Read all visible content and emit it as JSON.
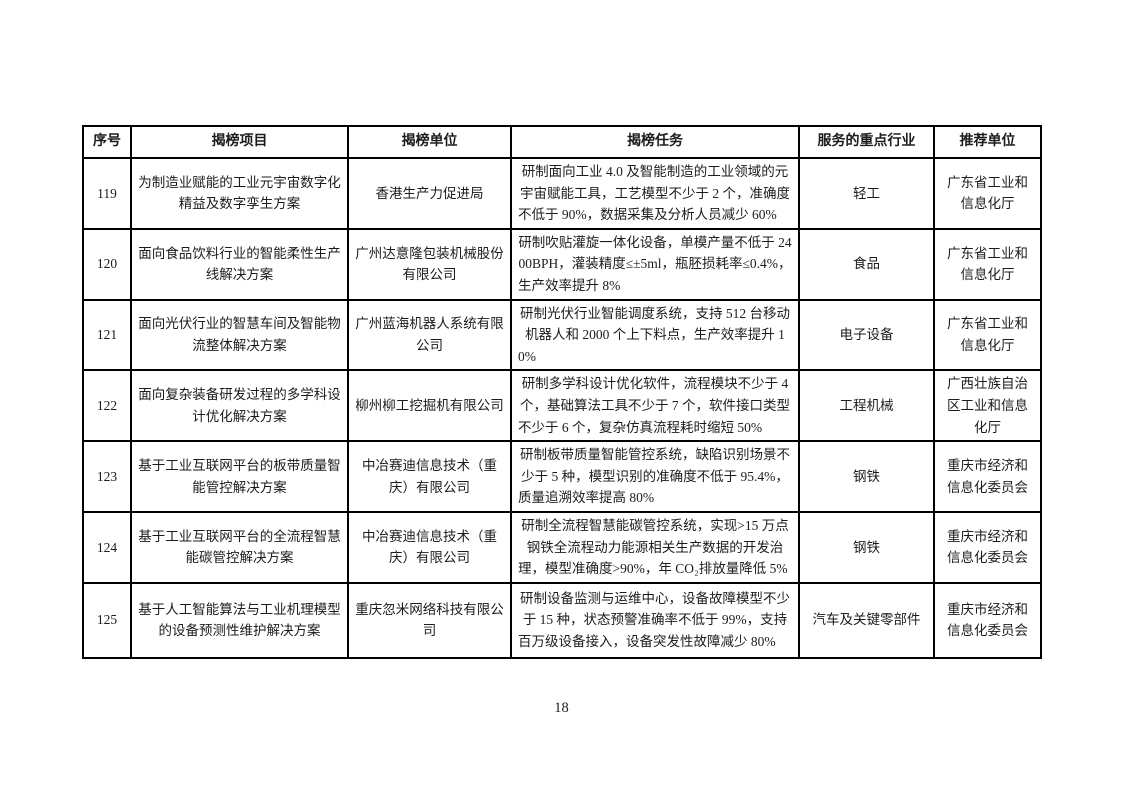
{
  "document": {
    "page_number": "18"
  },
  "table": {
    "headers": [
      "序号",
      "揭榜项目",
      "揭榜单位",
      "揭榜任务",
      "服务的重点行业",
      "推荐单位"
    ],
    "rows": [
      {
        "no": "119",
        "project": "为制造业赋能的工业元宇宙数字化精益及数字孪生方案",
        "unit": "香港生产力促进局",
        "task": "研制面向工业 4.0 及智能制造的工业领域的元宇宙赋能工具，工艺模型不少于 2 个，准确度不低于 90%，数据采集及分析人员减少 60%",
        "industry": "轻工",
        "recommender": "广东省工业和信息化厅"
      },
      {
        "no": "120",
        "project": "面向食品饮料行业的智能柔性生产线解决方案",
        "unit": "广州达意隆包装机械股份有限公司",
        "task": "研制吹贴灌旋一体化设备，单模产量不低于 2400BPH，灌装精度≤±5ml，瓶胚损耗率≤0.4%，生产效率提升 8%",
        "industry": "食品",
        "recommender": "广东省工业和信息化厅"
      },
      {
        "no": "121",
        "project": "面向光伏行业的智慧车间及智能物流整体解决方案",
        "unit": "广州蓝海机器人系统有限公司",
        "task": "研制光伏行业智能调度系统，支持 512 台移动机器人和 2000 个上下料点，生产效率提升 10%",
        "industry": "电子设备",
        "recommender": "广东省工业和信息化厅"
      },
      {
        "no": "122",
        "project": "面向复杂装备研发过程的多学科设计优化解决方案",
        "unit": "柳州柳工挖掘机有限公司",
        "task": "研制多学科设计优化软件，流程模块不少于 4 个，基础算法工具不少于 7 个，软件接口类型不少于 6 个，复杂仿真流程耗时缩短 50%",
        "industry": "工程机械",
        "recommender": "广西壮族自治区工业和信息化厅"
      },
      {
        "no": "123",
        "project": "基于工业互联网平台的板带质量智能管控解决方案",
        "unit": "中冶赛迪信息技术（重庆）有限公司",
        "task": "研制板带质量智能管控系统，缺陷识别场景不少于 5 种，模型识别的准确度不低于 95.4%，质量追溯效率提高 80%",
        "industry": "钢铁",
        "recommender": "重庆市经济和信息化委员会"
      },
      {
        "no": "124",
        "project": "基于工业互联网平台的全流程智慧能碳管控解决方案",
        "unit": "中冶赛迪信息技术（重庆）有限公司",
        "task": "研制全流程智慧能碳管控系统，实现>15 万点钢铁全流程动力能源相关生产数据的开发治理，模型准确度>90%，年 CO₂排放量降低 5%",
        "industry": "钢铁",
        "recommender": "重庆市经济和信息化委员会"
      },
      {
        "no": "125",
        "project": "基于人工智能算法与工业机理模型的设备预测性维护解决方案",
        "unit": "重庆忽米网络科技有限公司",
        "task": "研制设备监测与运维中心，设备故障模型不少于 15 种，状态预警准确率不低于 99%，支持百万级设备接入，设备突发性故障减少 80%",
        "industry": "汽车及关键零部件",
        "recommender": "重庆市经济和信息化委员会"
      }
    ]
  }
}
